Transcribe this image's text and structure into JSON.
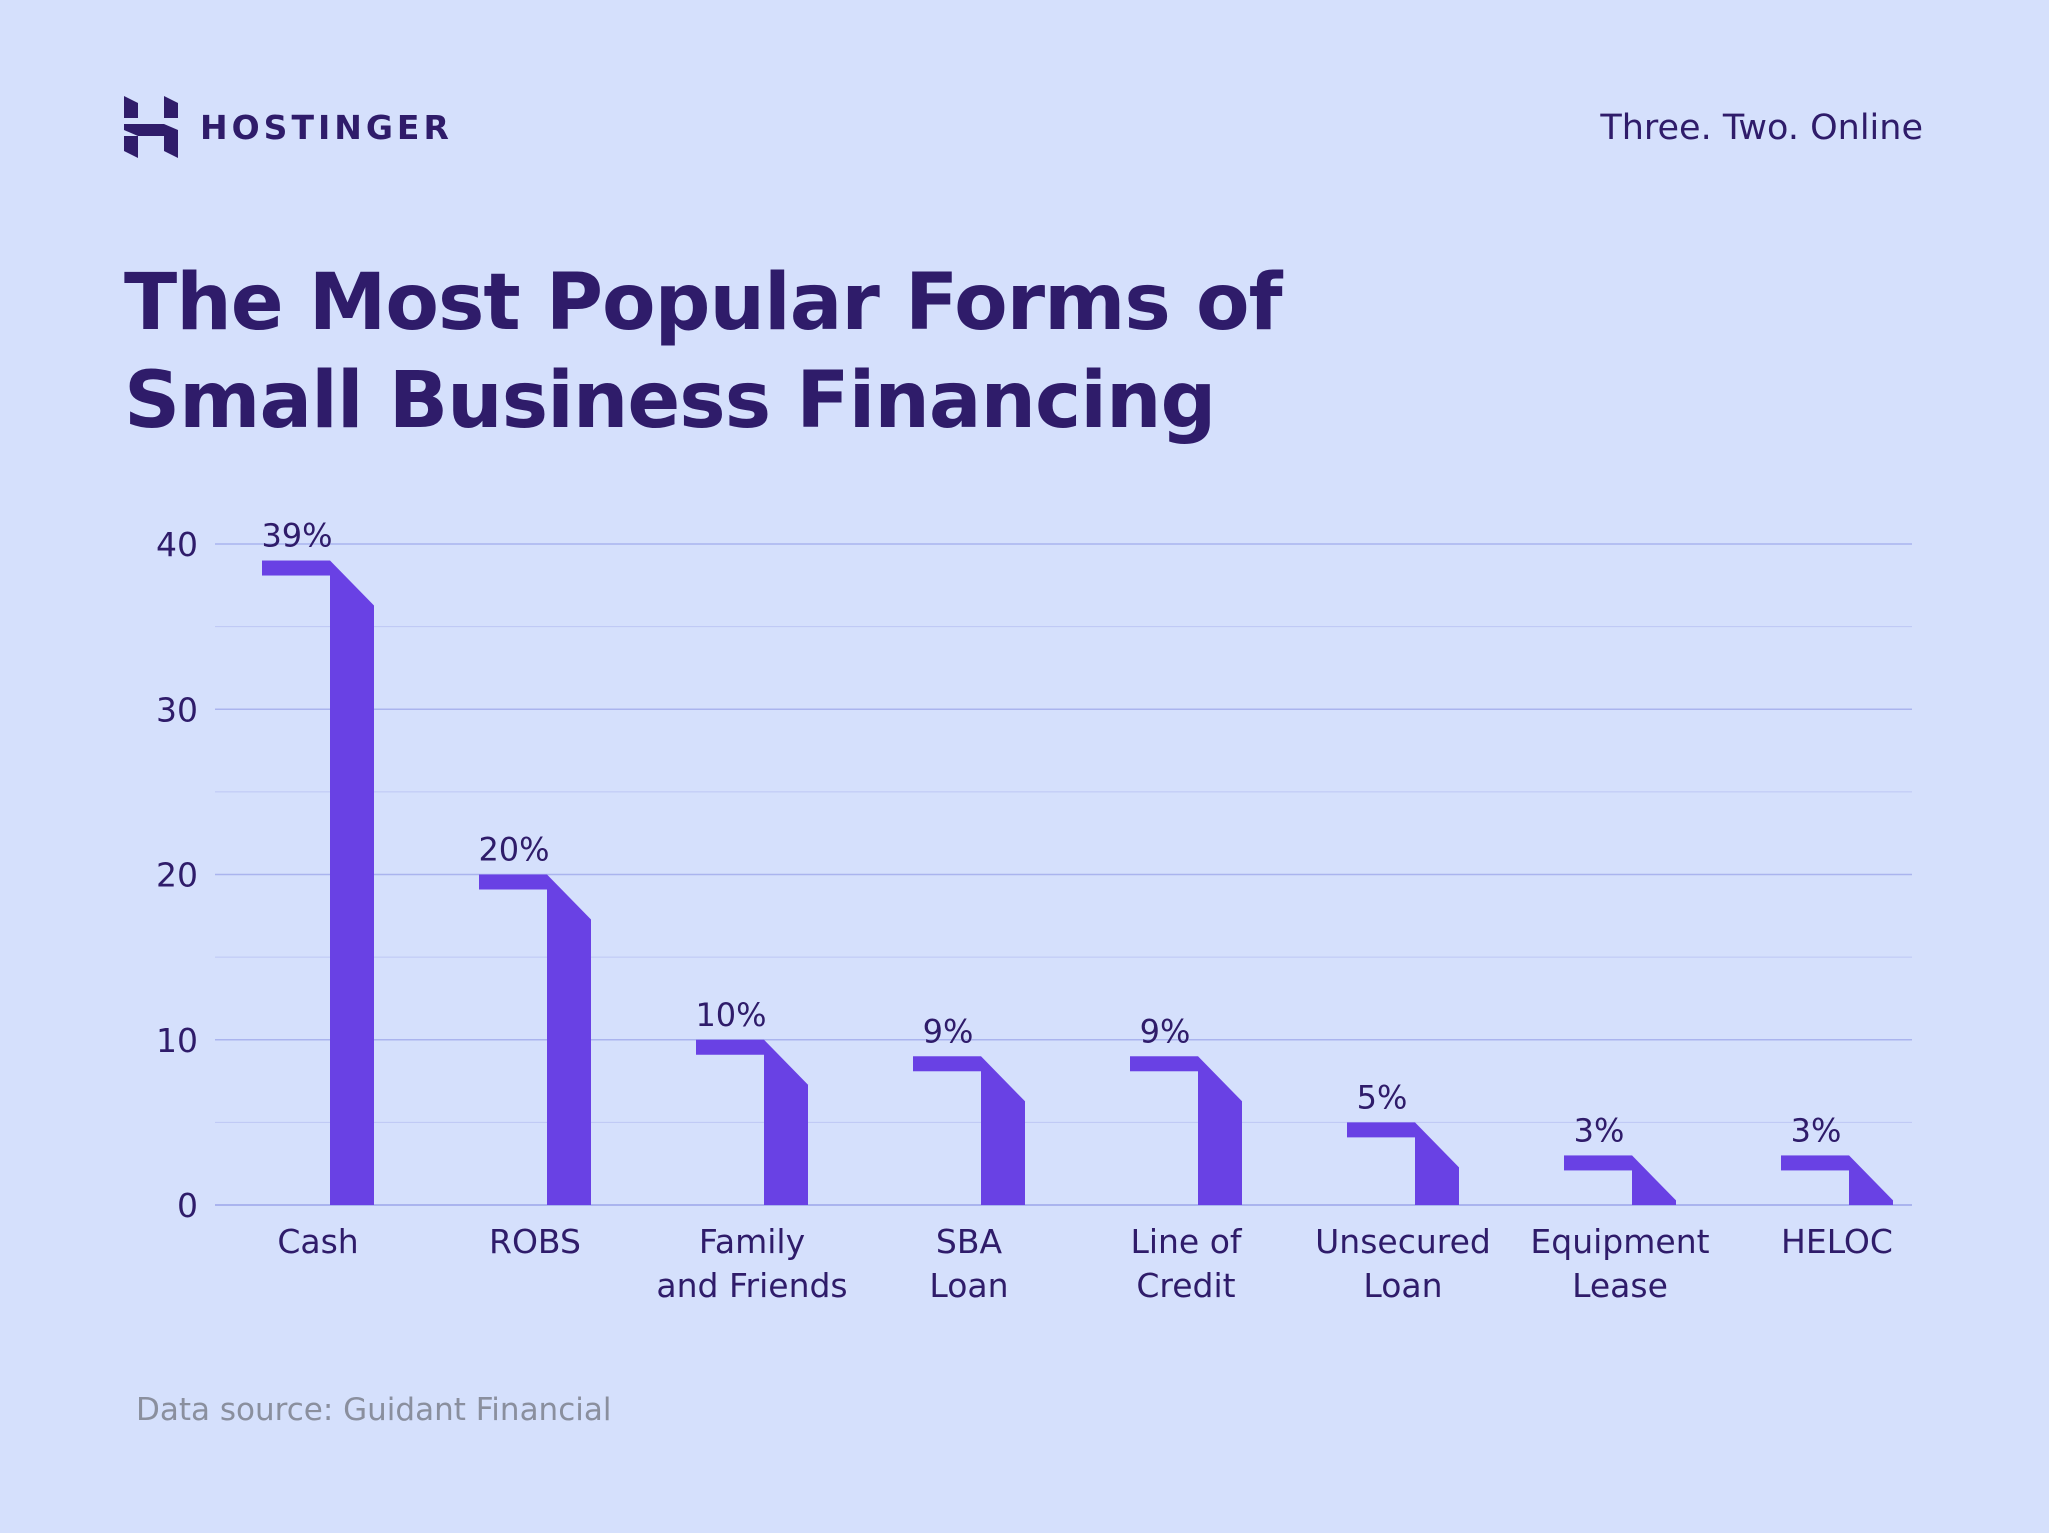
{
  "header": {
    "brand_name": "HOSTINGER",
    "tagline": "Three. Two. Online"
  },
  "title": {
    "line1": "The Most Popular Forms of",
    "line2": "Small Business Financing"
  },
  "footer": {
    "source": "Data source: Guidant Financial"
  },
  "colors": {
    "background": "#d5e0fc",
    "bar": "#6941e4",
    "text": "#2f1c6a",
    "grid": "#aab4ee",
    "source_text": "#8a8f9e"
  },
  "chart_data": {
    "type": "bar",
    "title": "The Most Popular Forms of Small Business Financing",
    "categories": [
      [
        "Cash"
      ],
      [
        "ROBS"
      ],
      [
        "Family",
        "and Friends"
      ],
      [
        "SBA",
        "Loan"
      ],
      [
        "Line of",
        "Credit"
      ],
      [
        "Unsecured",
        "Loan"
      ],
      [
        "Equipment",
        "Lease"
      ],
      [
        "HELOC"
      ]
    ],
    "values": [
      39,
      20,
      10,
      9,
      9,
      5,
      3,
      3
    ],
    "value_labels": [
      "39%",
      "20%",
      "10%",
      "9%",
      "9%",
      "5%",
      "3%",
      "3%"
    ],
    "yticks": [
      "0",
      "10",
      "20",
      "30",
      "40"
    ],
    "ylim": [
      0,
      40
    ],
    "grid": true,
    "xlabel": "",
    "ylabel": ""
  }
}
